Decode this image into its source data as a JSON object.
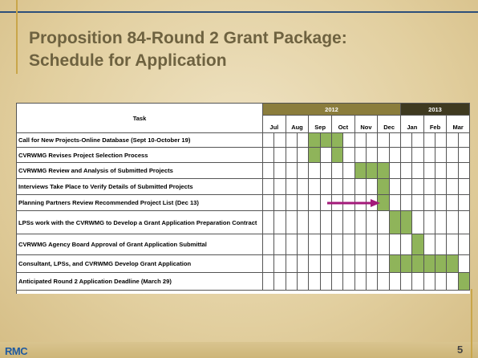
{
  "title_lines": [
    "Proposition 84-Round 2 Grant Package:",
    "Schedule for Application"
  ],
  "table": {
    "task_header": "Task",
    "years": [
      {
        "label": "2012",
        "months": [
          "Jul",
          "Aug",
          "Sep",
          "Oct",
          "Nov",
          "Dec"
        ]
      },
      {
        "label": "2013",
        "months": [
          "Jan",
          "Feb",
          "Mar"
        ]
      }
    ],
    "rows": [
      {
        "task": "Call for New Projects-Online Database (Sept 10-October 19)",
        "schedule": [
          0,
          0,
          0,
          0,
          1,
          1,
          1,
          0,
          0,
          0,
          0,
          0,
          0,
          0,
          0,
          0,
          0,
          0
        ]
      },
      {
        "task": "CVRWMG Revises Project Selection Process",
        "schedule": [
          0,
          0,
          0,
          0,
          1,
          0,
          1,
          0,
          0,
          0,
          0,
          0,
          0,
          0,
          0,
          0,
          0,
          0
        ]
      },
      {
        "task": "CVRWMG Review and Analysis of Submitted Projects",
        "schedule": [
          0,
          0,
          0,
          0,
          0,
          0,
          0,
          0,
          1,
          1,
          1,
          0,
          0,
          0,
          0,
          0,
          0,
          0
        ]
      },
      {
        "task": "Interviews Take Place to Verify Details of Submitted Projects",
        "schedule": [
          0,
          0,
          0,
          0,
          0,
          0,
          0,
          0,
          0,
          0,
          1,
          0,
          0,
          0,
          0,
          0,
          0,
          0
        ]
      },
      {
        "task": "Planning Partners Review Recommended Project List (Dec 13)",
        "schedule": [
          0,
          0,
          0,
          0,
          0,
          0,
          0,
          0,
          0,
          0,
          1,
          0,
          0,
          0,
          0,
          0,
          0,
          0
        ]
      },
      {
        "task": "LPSs work with the CVRWMG to Develop a Grant Application Preparation Contract",
        "schedule": [
          0,
          0,
          0,
          0,
          0,
          0,
          0,
          0,
          0,
          0,
          0,
          1,
          1,
          0,
          0,
          0,
          0,
          0
        ]
      },
      {
        "task": "CVRWMG Agency Board Approval of Grant Application Submittal",
        "schedule": [
          0,
          0,
          0,
          0,
          0,
          0,
          0,
          0,
          0,
          0,
          0,
          0,
          0,
          1,
          0,
          0,
          0,
          0
        ]
      },
      {
        "task": "Consultant, LPSs, and CVRWMG Develop Grant Application",
        "schedule": [
          0,
          0,
          0,
          0,
          0,
          0,
          0,
          0,
          0,
          0,
          0,
          1,
          1,
          1,
          1,
          1,
          1,
          0
        ]
      },
      {
        "task": "Anticipated Round 2 Application Deadline (March 29)",
        "schedule": [
          0,
          0,
          0,
          0,
          0,
          0,
          0,
          0,
          0,
          0,
          0,
          0,
          0,
          0,
          0,
          0,
          0,
          1
        ]
      }
    ]
  },
  "footer": {
    "logo": "RMC",
    "page": "5"
  }
}
